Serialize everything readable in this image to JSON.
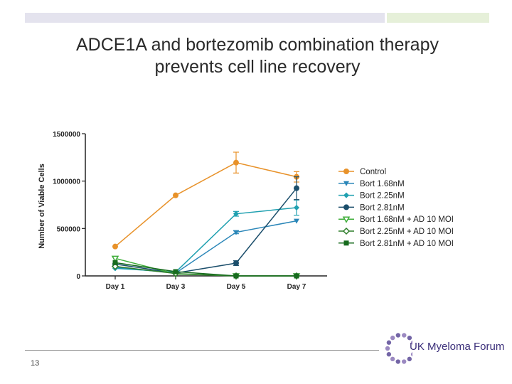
{
  "slide": {
    "title_line1": "ADCE1A and bortezomib combination therapy",
    "title_line2": "prevents cell line recovery",
    "page_number": "13",
    "logo_text": "UK Myeloma Forum",
    "accent_colors": {
      "bar_left": "#e4e3ee",
      "bar_right": "#e6f0d9",
      "logo": "#3b2f7a"
    }
  },
  "chart_data": {
    "type": "line",
    "title": "",
    "xlabel": "",
    "ylabel": "Number of Viable Cells",
    "categories": [
      "Day 1",
      "Day 3",
      "Day 5",
      "Day 7"
    ],
    "ylim": [
      0,
      1500000
    ],
    "yticks": [
      0,
      500000,
      1000000,
      1500000
    ],
    "ytick_labels": [
      "0",
      "500000",
      "1000000",
      "1500000"
    ],
    "grid": false,
    "legend_position": "right",
    "series": [
      {
        "name": "Control",
        "color": "#e8922a",
        "marker": "circle",
        "values": [
          310000,
          850000,
          1195000,
          1045000
        ],
        "errors": [
          0,
          0,
          110000,
          55000
        ]
      },
      {
        "name": "Bort 1.68nM",
        "color": "#2a86b8",
        "marker": "triangle-down",
        "values": [
          90000,
          30000,
          460000,
          580000
        ],
        "errors": [
          0,
          0,
          15000,
          0
        ]
      },
      {
        "name": "Bort 2.25nM",
        "color": "#1fa0b0",
        "marker": "diamond",
        "values": [
          80000,
          40000,
          655000,
          720000
        ],
        "errors": [
          0,
          0,
          25000,
          80000
        ]
      },
      {
        "name": "Bort 2.81nM",
        "color": "#1b4e6b",
        "marker": "circle",
        "values": [
          125000,
          30000,
          135000,
          925000
        ],
        "errors": [
          0,
          0,
          25000,
          120000
        ]
      },
      {
        "name": "Bort 1.68nM + AD 10 MOI",
        "color": "#3fae3a",
        "marker": "triangle-down-open",
        "values": [
          185000,
          20000,
          0,
          0
        ],
        "errors": [
          0,
          0,
          0,
          0
        ]
      },
      {
        "name": "Bort 2.25nM + AD 10 MOI",
        "color": "#2e7d2a",
        "marker": "diamond-open",
        "values": [
          100000,
          25000,
          0,
          0
        ],
        "errors": [
          0,
          0,
          0,
          0
        ]
      },
      {
        "name": "Bort 2.81nM + AD 10 MOI",
        "color": "#176b1e",
        "marker": "square",
        "values": [
          140000,
          45000,
          0,
          0
        ],
        "errors": [
          0,
          0,
          0,
          0
        ]
      }
    ]
  }
}
